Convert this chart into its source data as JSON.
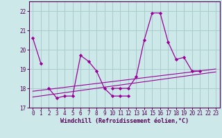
{
  "xlabel": "Windchill (Refroidissement éolien,°C)",
  "background_color": "#cce8e8",
  "grid_color": "#aacccc",
  "line_color": "#990099",
  "line1_x": [
    0,
    1
  ],
  "line1_y": [
    20.6,
    19.3
  ],
  "line2_x": [
    2,
    3,
    4,
    5,
    6,
    7,
    8,
    9,
    10,
    11,
    12
  ],
  "line2_y": [
    18.0,
    17.5,
    17.6,
    17.6,
    19.7,
    19.4,
    18.9,
    18.0,
    17.6,
    17.6,
    17.6
  ],
  "line3_x": [
    0,
    23
  ],
  "line3_y": [
    17.85,
    19.0
  ],
  "line4_x": [
    0,
    23
  ],
  "line4_y": [
    17.55,
    18.85
  ],
  "line5_x": [
    10,
    11,
    12,
    13,
    14,
    15,
    16,
    17,
    18,
    19,
    20,
    21
  ],
  "line5_y": [
    18.0,
    18.0,
    18.0,
    18.6,
    20.5,
    21.9,
    21.9,
    20.4,
    19.5,
    19.6,
    18.9,
    18.9
  ],
  "ylim": [
    17.0,
    22.5
  ],
  "yticks": [
    17,
    18,
    19,
    20,
    21,
    22
  ],
  "xticks": [
    0,
    1,
    2,
    3,
    4,
    5,
    6,
    7,
    8,
    9,
    10,
    11,
    12,
    13,
    14,
    15,
    16,
    17,
    18,
    19,
    20,
    21,
    22,
    23
  ]
}
